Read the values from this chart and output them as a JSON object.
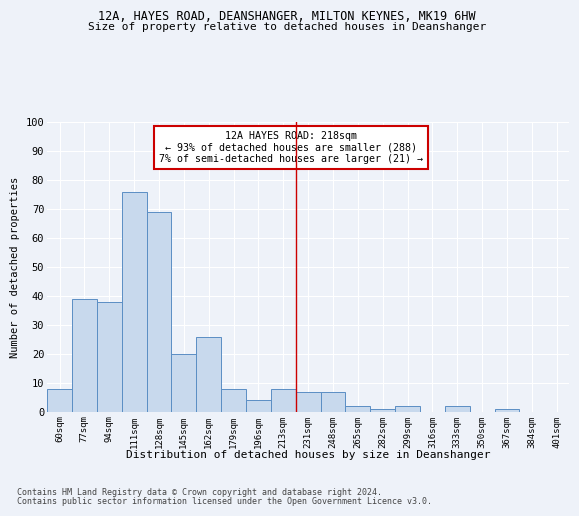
{
  "title1": "12A, HAYES ROAD, DEANSHANGER, MILTON KEYNES, MK19 6HW",
  "title2": "Size of property relative to detached houses in Deanshanger",
  "xlabel": "Distribution of detached houses by size in Deanshanger",
  "ylabel": "Number of detached properties",
  "categories": [
    "60sqm",
    "77sqm",
    "94sqm",
    "111sqm",
    "128sqm",
    "145sqm",
    "162sqm",
    "179sqm",
    "196sqm",
    "213sqm",
    "231sqm",
    "248sqm",
    "265sqm",
    "282sqm",
    "299sqm",
    "316sqm",
    "333sqm",
    "350sqm",
    "367sqm",
    "384sqm",
    "401sqm"
  ],
  "values": [
    8,
    39,
    38,
    76,
    69,
    20,
    26,
    8,
    4,
    8,
    7,
    7,
    2,
    1,
    2,
    0,
    2,
    0,
    1,
    0,
    0
  ],
  "bar_color": "#c8d9ed",
  "bar_edge_color": "#5b8ec4",
  "vline_x_idx": 9.5,
  "vline_color": "#cc0000",
  "annotation_title": "12A HAYES ROAD: 218sqm",
  "annotation_line1": "← 93% of detached houses are smaller (288)",
  "annotation_line2": "7% of semi-detached houses are larger (21) →",
  "annotation_box_edgecolor": "#cc0000",
  "ylim": [
    0,
    100
  ],
  "yticks": [
    0,
    10,
    20,
    30,
    40,
    50,
    60,
    70,
    80,
    90,
    100
  ],
  "footer1": "Contains HM Land Registry data © Crown copyright and database right 2024.",
  "footer2": "Contains public sector information licensed under the Open Government Licence v3.0.",
  "bg_color": "#eef2f9",
  "plot_bg_color": "#eef2f9"
}
